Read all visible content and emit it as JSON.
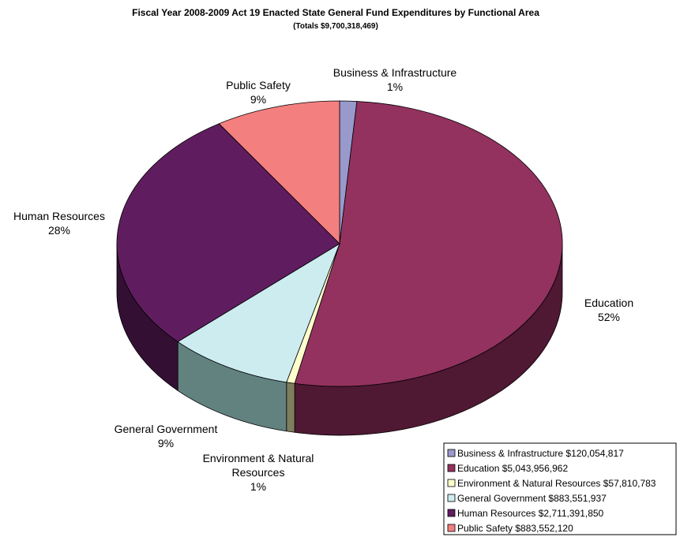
{
  "chart_data": {
    "type": "pie",
    "title": "Fiscal Year 2008-2009 Act 19 Enacted State General Fund Expenditures by Functional Area",
    "subtitle": "(Totals  $9,700,318,469)",
    "three_d": true,
    "start_direction": "top",
    "direction": "clockwise",
    "legend_position": "bottom-right",
    "slices": [
      {
        "category": "Business & Infrastructure",
        "value": 120054817,
        "percent_label": "1%",
        "legend_label": "Business & Infrastructure $120,054,817",
        "color": "#9999CC",
        "side_color": "#6B6B8F"
      },
      {
        "category": "Education",
        "value": 5043956962,
        "percent_label": "52%",
        "legend_label": "Education $5,043,956,962",
        "color": "#93325F",
        "side_color": "#4F1833"
      },
      {
        "category": "Environment & Natural Resources",
        "value": 57810783,
        "percent_label": "1%",
        "legend_label": "Environment & Natural Resources $57,810,783",
        "color": "#FFFFCC",
        "side_color": "#7E7E5E"
      },
      {
        "category": "General Government",
        "value": 883551937,
        "percent_label": "9%",
        "legend_label": "General Government $883,551,937",
        "color": "#CCECF0",
        "side_color": "#628280"
      },
      {
        "category": "Human Resources",
        "value": 2711391850,
        "percent_label": "28%",
        "legend_label": "Human Resources $2,711,391,850",
        "color": "#5F1D5F",
        "side_color": "#331033"
      },
      {
        "category": "Public Safety",
        "value": 883552120,
        "percent_label": "9%",
        "legend_label": "Public Safety $883,552,120",
        "color": "#F47F7F",
        "side_color": "#9C4E4E"
      }
    ],
    "slice_label_lines": [
      [
        "Business & Infrastructure",
        "1%"
      ],
      [
        "Education",
        "52%"
      ],
      [
        "Environment & Natural",
        "Resources",
        "1%"
      ],
      [
        "General Government",
        "9%"
      ],
      [
        "Human Resources",
        "28%"
      ],
      [
        "Public Safety",
        "9%"
      ]
    ]
  }
}
